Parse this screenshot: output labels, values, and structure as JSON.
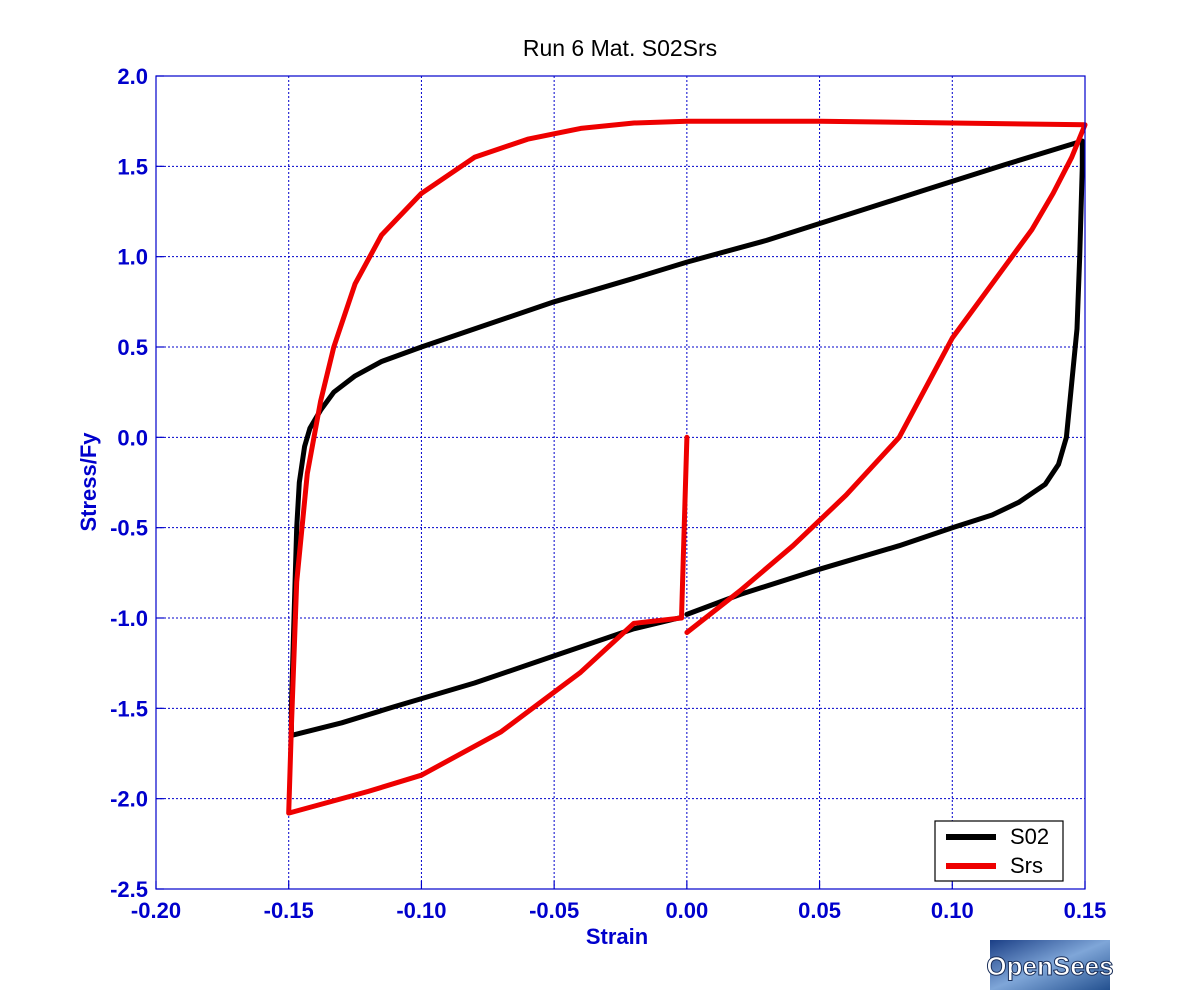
{
  "chart_data": {
    "type": "line",
    "title": "Run 6   Mat. S02Srs",
    "xlabel": "Strain",
    "ylabel": "Stress/Fy",
    "xlim": [
      -0.2,
      0.15
    ],
    "ylim": [
      -2.5,
      2.0
    ],
    "x_ticks": [
      -0.2,
      -0.15,
      -0.1,
      -0.05,
      0.0,
      0.05,
      0.1,
      0.15
    ],
    "x_tick_labels": [
      "-0.20",
      "-0.15",
      "-0.10",
      "-0.05",
      "0.00",
      "0.05",
      "0.10",
      "0.15"
    ],
    "y_ticks": [
      2.0,
      1.5,
      1.0,
      0.5,
      0.0,
      -0.5,
      -1.0,
      -1.5,
      -2.0,
      -2.5
    ],
    "y_tick_labels": [
      "2.0",
      "1.5",
      "1.0",
      "0.5",
      "0.0",
      "-0.5",
      "-1.0",
      "-1.5",
      "-2.0",
      "-2.5"
    ],
    "grid": true,
    "legend_position": "bottom-right",
    "colors": {
      "axis": "#0000cc",
      "grid": "#0000cc",
      "title": "#000000"
    },
    "series": [
      {
        "name": "S02",
        "color": "#000000",
        "points": [
          [
            -0.003,
            -1.0
          ],
          [
            -0.02,
            -1.06
          ],
          [
            -0.05,
            -1.21
          ],
          [
            -0.08,
            -1.36
          ],
          [
            -0.11,
            -1.49
          ],
          [
            -0.13,
            -1.58
          ],
          [
            -0.149,
            -1.65
          ],
          [
            -0.149,
            -1.5
          ],
          [
            -0.148,
            -1.0
          ],
          [
            -0.147,
            -0.5
          ],
          [
            -0.146,
            -0.25
          ],
          [
            -0.144,
            -0.05
          ],
          [
            -0.142,
            0.05
          ],
          [
            -0.138,
            0.15
          ],
          [
            -0.133,
            0.25
          ],
          [
            -0.125,
            0.34
          ],
          [
            -0.115,
            0.42
          ],
          [
            -0.1,
            0.5
          ],
          [
            -0.08,
            0.6
          ],
          [
            -0.05,
            0.75
          ],
          [
            -0.02,
            0.88
          ],
          [
            0.0,
            0.97
          ],
          [
            0.03,
            1.09
          ],
          [
            0.06,
            1.23
          ],
          [
            0.09,
            1.37
          ],
          [
            0.12,
            1.51
          ],
          [
            0.149,
            1.64
          ],
          [
            0.149,
            1.5
          ],
          [
            0.148,
            1.0
          ],
          [
            0.147,
            0.6
          ],
          [
            0.145,
            0.3
          ],
          [
            0.143,
            0.0
          ],
          [
            0.14,
            -0.15
          ],
          [
            0.135,
            -0.26
          ],
          [
            0.125,
            -0.36
          ],
          [
            0.115,
            -0.43
          ],
          [
            0.1,
            -0.5
          ],
          [
            0.08,
            -0.6
          ],
          [
            0.05,
            -0.73
          ],
          [
            0.02,
            -0.87
          ],
          [
            0.0,
            -0.98
          ]
        ]
      },
      {
        "name": "Srs",
        "color": "#ee0000",
        "points": [
          [
            0.0,
            0.0
          ],
          [
            -0.001,
            -0.5
          ],
          [
            -0.002,
            -1.0
          ],
          [
            -0.02,
            -1.03
          ],
          [
            -0.04,
            -1.3
          ],
          [
            -0.07,
            -1.63
          ],
          [
            -0.1,
            -1.87
          ],
          [
            -0.12,
            -1.96
          ],
          [
            -0.15,
            -2.08
          ],
          [
            -0.149,
            -1.6
          ],
          [
            -0.147,
            -0.8
          ],
          [
            -0.143,
            -0.2
          ],
          [
            -0.138,
            0.2
          ],
          [
            -0.133,
            0.5
          ],
          [
            -0.125,
            0.85
          ],
          [
            -0.115,
            1.12
          ],
          [
            -0.1,
            1.35
          ],
          [
            -0.08,
            1.55
          ],
          [
            -0.06,
            1.65
          ],
          [
            -0.04,
            1.71
          ],
          [
            -0.02,
            1.74
          ],
          [
            0.0,
            1.75
          ],
          [
            0.05,
            1.75
          ],
          [
            0.1,
            1.74
          ],
          [
            0.15,
            1.73
          ],
          [
            0.145,
            1.55
          ],
          [
            0.138,
            1.35
          ],
          [
            0.13,
            1.15
          ],
          [
            0.12,
            0.95
          ],
          [
            0.1,
            0.55
          ],
          [
            0.08,
            0.0
          ],
          [
            0.06,
            -0.32
          ],
          [
            0.04,
            -0.6
          ],
          [
            0.02,
            -0.85
          ],
          [
            0.0,
            -1.08
          ]
        ]
      }
    ]
  },
  "logo": {
    "text": "OpenSees"
  }
}
